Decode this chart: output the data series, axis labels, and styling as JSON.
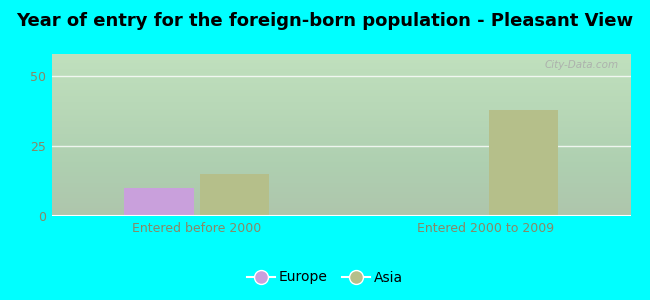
{
  "title": "Year of entry for the foreign-born population - Pleasant View",
  "groups": [
    "Entered before 2000",
    "Entered 2000 to 2009"
  ],
  "series": {
    "Europe": [
      10,
      0
    ],
    "Asia": [
      15,
      38
    ]
  },
  "europe_color": "#c9a0dc",
  "asia_color": "#b5bf8a",
  "background_color": "#00ffff",
  "yticks": [
    0,
    25,
    50
  ],
  "ylim": [
    0,
    58
  ],
  "bar_width": 0.12,
  "watermark": "City-Data.com",
  "title_fontsize": 13,
  "tick_fontsize": 9,
  "legend_fontsize": 10,
  "grid_color": "#dddddd",
  "tick_color": "#888866"
}
